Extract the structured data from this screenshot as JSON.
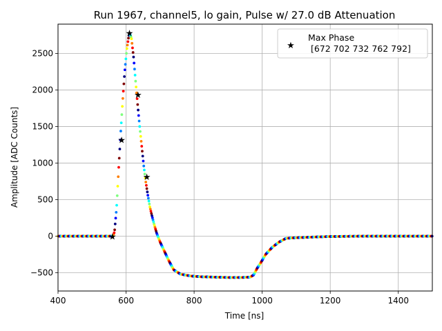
{
  "chart_data": {
    "type": "scatter",
    "title": "Run 1967, channel5, lo gain, Pulse w/ 27.0 dB Attenuation",
    "xlabel": "Time [ns]",
    "ylabel": "Amplitude [ADC Counts]",
    "xlim": [
      400,
      1500
    ],
    "ylim": [
      -750,
      2900
    ],
    "x_ticks": [
      400,
      600,
      800,
      1000,
      1200,
      1400
    ],
    "y_ticks": [
      -500,
      0,
      500,
      1000,
      1500,
      2000,
      2500
    ],
    "x_tick_labels": [
      "400",
      "600",
      "800",
      "1000",
      "1200",
      "1400"
    ],
    "y_tick_labels": [
      "−500",
      "0",
      "500",
      "1000",
      "1500",
      "2000",
      "2500"
    ],
    "grid": true,
    "legend_position": "upper-right",
    "colormap": [
      "#00007f",
      "#0000ff",
      "#007fff",
      "#00ffff",
      "#7fff7f",
      "#ffff00",
      "#ff7f00",
      "#ff0000",
      "#7f0000"
    ],
    "pulse_shape": {
      "x": [
        400,
        540,
        556,
        562,
        566,
        572,
        578,
        584,
        590,
        596,
        602,
        608,
        611,
        616,
        622,
        628,
        634,
        640,
        646,
        652,
        658,
        664,
        670,
        676,
        682,
        690,
        700,
        712,
        725,
        740,
        760,
        790,
        820,
        860,
        900,
        940,
        965,
        975,
        985,
        995,
        1010,
        1030,
        1050,
        1070,
        1085,
        1110,
        1150,
        1200,
        1300,
        1400,
        1500
      ],
      "y": [
        0,
        0,
        0,
        5,
        60,
        380,
        900,
        1400,
        1850,
        2250,
        2550,
        2740,
        2780,
        2700,
        2450,
        2120,
        1800,
        1500,
        1230,
        960,
        740,
        560,
        400,
        280,
        170,
        40,
        -80,
        -200,
        -330,
        -460,
        -520,
        -545,
        -555,
        -560,
        -565,
        -565,
        -560,
        -530,
        -440,
        -370,
        -250,
        -150,
        -80,
        -30,
        -25,
        -20,
        -12,
        -5,
        0,
        0,
        0
      ]
    },
    "series": [
      {
        "name": "Max Phase\n [672 702 732 762 792]",
        "marker": "star",
        "x": [
          560,
          587,
          610,
          635,
          661
        ],
        "y": [
          0,
          1320,
          2780,
          1940,
          815
        ]
      }
    ]
  }
}
